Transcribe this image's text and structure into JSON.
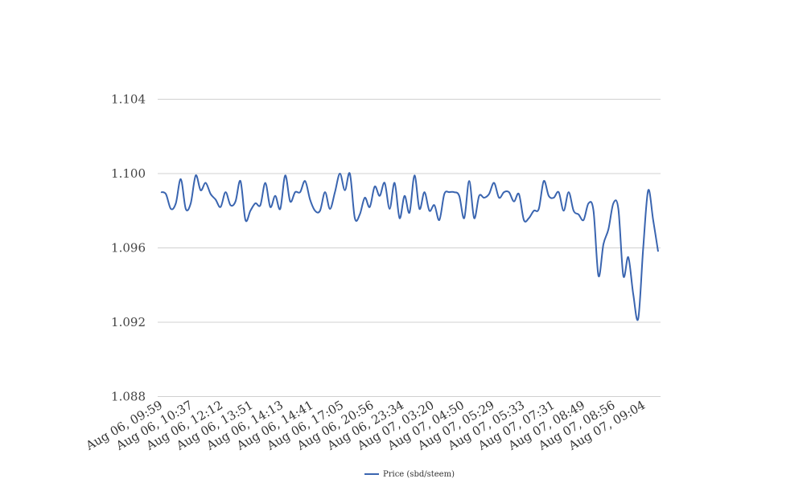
{
  "chart_data": {
    "type": "line",
    "title": "",
    "xlabel": "",
    "ylabel": "",
    "ylim": [
      1.088,
      1.104
    ],
    "yticks": [
      "1.104",
      "1.100",
      "1.096",
      "1.092",
      "1.088"
    ],
    "yticks_values": [
      1.104,
      1.1,
      1.096,
      1.092,
      1.088
    ],
    "grid": true,
    "legend_position": "bottom-center",
    "line_color": "#3a65b0",
    "x_tick_labels": [
      "Aug 06, 09:59",
      "Aug 06, 10:37",
      "Aug 06, 12:12",
      "Aug 06, 13:51",
      "Aug 06, 14:13",
      "Aug 06, 14:41",
      "Aug 06, 17:05",
      "Aug 06, 20:56",
      "Aug 06, 23:34",
      "Aug 07, 03:20",
      "Aug 07, 04:50",
      "Aug 07, 05:29",
      "Aug 07, 05:33",
      "Aug 07, 07:31",
      "Aug 07, 08:49",
      "Aug 07, 08:56",
      "Aug 07, 09:04"
    ],
    "series": [
      {
        "name": "Price (sbd/steem)",
        "values": [
          1.099,
          1.0989,
          1.0981,
          1.0984,
          1.0997,
          1.0981,
          1.0984,
          1.0999,
          1.0991,
          1.0995,
          1.0989,
          1.0986,
          1.0982,
          1.099,
          1.0983,
          1.0985,
          1.0996,
          1.0975,
          1.098,
          1.0984,
          1.0983,
          1.0995,
          1.0982,
          1.0988,
          1.0981,
          1.0999,
          1.0985,
          1.099,
          1.099,
          1.0996,
          1.0986,
          1.098,
          1.098,
          1.099,
          1.0981,
          1.099,
          1.1,
          1.0991,
          1.1,
          1.0976,
          1.0978,
          1.0987,
          1.0982,
          1.0993,
          1.0988,
          1.0995,
          1.0981,
          1.0995,
          1.0976,
          1.0988,
          1.0979,
          1.0999,
          1.0981,
          1.099,
          1.098,
          1.0983,
          1.0975,
          1.0989,
          1.099,
          1.099,
          1.0988,
          1.0976,
          1.0996,
          1.0976,
          1.0988,
          1.0987,
          1.0989,
          1.0995,
          1.0987,
          1.099,
          1.099,
          1.0985,
          1.0989,
          1.0975,
          1.0976,
          1.098,
          1.0981,
          1.0996,
          1.0988,
          1.0987,
          1.099,
          1.098,
          1.099,
          1.098,
          1.0978,
          1.0975,
          1.0984,
          1.098,
          1.0945,
          1.0962,
          1.097,
          1.0984,
          1.0981,
          1.0945,
          1.0955,
          1.0935,
          1.0922,
          1.096,
          1.0991,
          1.0975,
          1.0958
        ]
      }
    ]
  }
}
